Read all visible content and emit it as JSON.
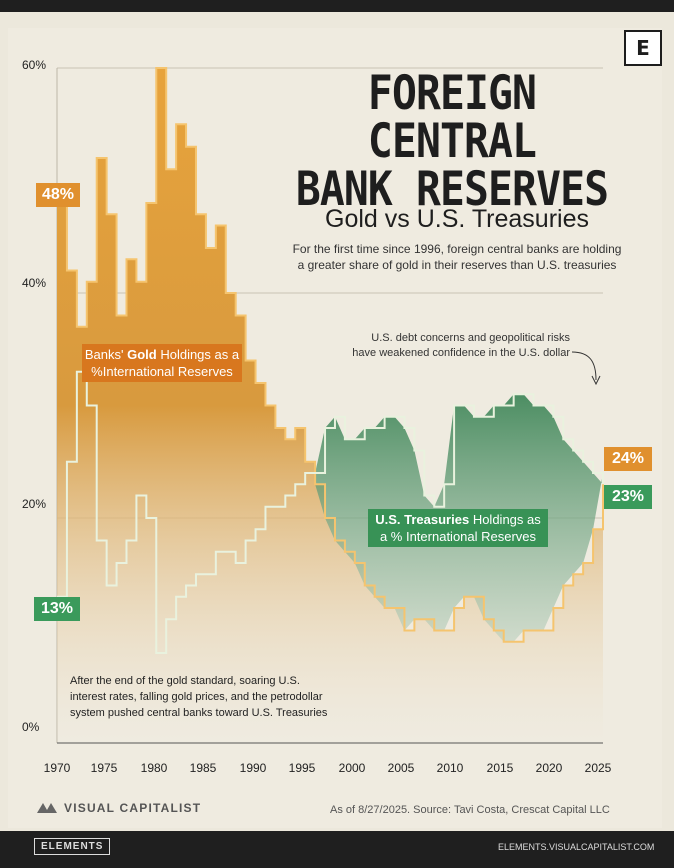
{
  "header": {
    "title_line1": "FOREIGN CENTRAL",
    "title_line2": "BANK RESERVES",
    "subtitle": "Gold vs U.S. Treasuries",
    "description_line1": "For the first time since 1996, foreign central banks are holding",
    "description_line2": "a greater share of gold in their reserves than U.S. treasuries",
    "logo_letter": "E"
  },
  "annotations": {
    "top_note_line1": "U.S. debt concerns and geopolitical risks",
    "top_note_line2": "have weakened confidence in the U.S. dollar",
    "bottom_note_line1": "After the end of the gold standard, soaring U.S.",
    "bottom_note_line2": "interest rates, falling gold prices, and the petrodollar",
    "bottom_note_line3": "system pushed central banks toward U.S. Treasuries",
    "gold_label_pre": "Banks' ",
    "gold_label_bold": "Gold",
    "gold_label_post": " Holdings as a",
    "gold_label_line2": "%International Reserves",
    "tsy_label_bold": "U.S. Treasuries",
    "tsy_label_post": " Holdings as",
    "tsy_label_line2": "a % International Reserves",
    "gold_start_tag": "48%",
    "tsy_start_tag": "13%",
    "gold_end_tag": "24%",
    "tsy_end_tag": "23%"
  },
  "footer": {
    "brand": "VISUAL CAPITALIST",
    "source": "As of 8/27/2025. Source: Tavi Costa, Crescat Capital LLC",
    "elements_label": "ELEMENTS",
    "elements_url": "ELEMENTS.VISUALCAPITALIST.COM"
  },
  "chart_data": {
    "type": "area",
    "ylim": [
      0,
      60
    ],
    "xlim": [
      1970,
      2025
    ],
    "yticks": [
      "0%",
      "20%",
      "40%",
      "60%"
    ],
    "xticks": [
      "1970",
      "1975",
      "1980",
      "1985",
      "1990",
      "1995",
      "2000",
      "2005",
      "2010",
      "2015",
      "2020",
      "2025"
    ],
    "colors": {
      "gold": "#dc8f2c",
      "treasuries": "#2f7d4c",
      "gold_tag": "#e0902e",
      "tsy_tag": "#3a9a5b"
    },
    "series": [
      {
        "key": "gold",
        "x": [
          1970,
          1971,
          1972,
          1973,
          1974,
          1975,
          1976,
          1977,
          1978,
          1979,
          1980,
          1981,
          1982,
          1983,
          1984,
          1985,
          1986,
          1987,
          1988,
          1989,
          1990,
          1991,
          1992,
          1993,
          1994,
          1995,
          1996,
          1997,
          1998,
          1999,
          2000,
          2001,
          2002,
          2003,
          2004,
          2005,
          2006,
          2007,
          2008,
          2009,
          2010,
          2011,
          2012,
          2013,
          2014,
          2015,
          2016,
          2017,
          2018,
          2019,
          2020,
          2021,
          2022,
          2023,
          2024,
          2025
        ],
        "y": [
          48,
          42,
          37,
          41,
          52,
          47,
          38,
          43,
          41,
          48,
          60,
          51,
          55,
          53,
          47,
          44,
          46,
          40,
          38,
          34,
          32,
          30,
          28,
          27,
          28,
          25,
          23,
          20,
          18,
          17,
          16,
          14,
          13,
          12,
          12,
          10,
          11,
          11,
          10,
          10,
          12,
          13,
          13,
          11,
          10,
          9,
          9,
          10,
          10,
          10,
          12,
          14,
          15,
          16,
          19,
          24
        ]
      },
      {
        "key": "treasuries",
        "x": [
          1970,
          1971,
          1972,
          1973,
          1974,
          1975,
          1976,
          1977,
          1978,
          1979,
          1980,
          1981,
          1982,
          1983,
          1984,
          1985,
          1986,
          1987,
          1988,
          1989,
          1990,
          1991,
          1992,
          1993,
          1994,
          1995,
          1996,
          1997,
          1998,
          1999,
          2000,
          2001,
          2002,
          2003,
          2004,
          2005,
          2006,
          2007,
          2008,
          2009,
          2010,
          2011,
          2012,
          2013,
          2014,
          2015,
          2016,
          2017,
          2018,
          2019,
          2020,
          2021,
          2022,
          2023,
          2024,
          2025
        ],
        "y": [
          13,
          25,
          33,
          30,
          18,
          14,
          16,
          18,
          22,
          20,
          8,
          11,
          13,
          14,
          15,
          15,
          17,
          17,
          16,
          18,
          19,
          21,
          21,
          22,
          23,
          24,
          24,
          28,
          29,
          27,
          27,
          28,
          28,
          29,
          29,
          28,
          26,
          22,
          21,
          23,
          30,
          30,
          29,
          29,
          30,
          30,
          31,
          31,
          30,
          30,
          29,
          27,
          26,
          25,
          24,
          23
        ]
      }
    ]
  }
}
